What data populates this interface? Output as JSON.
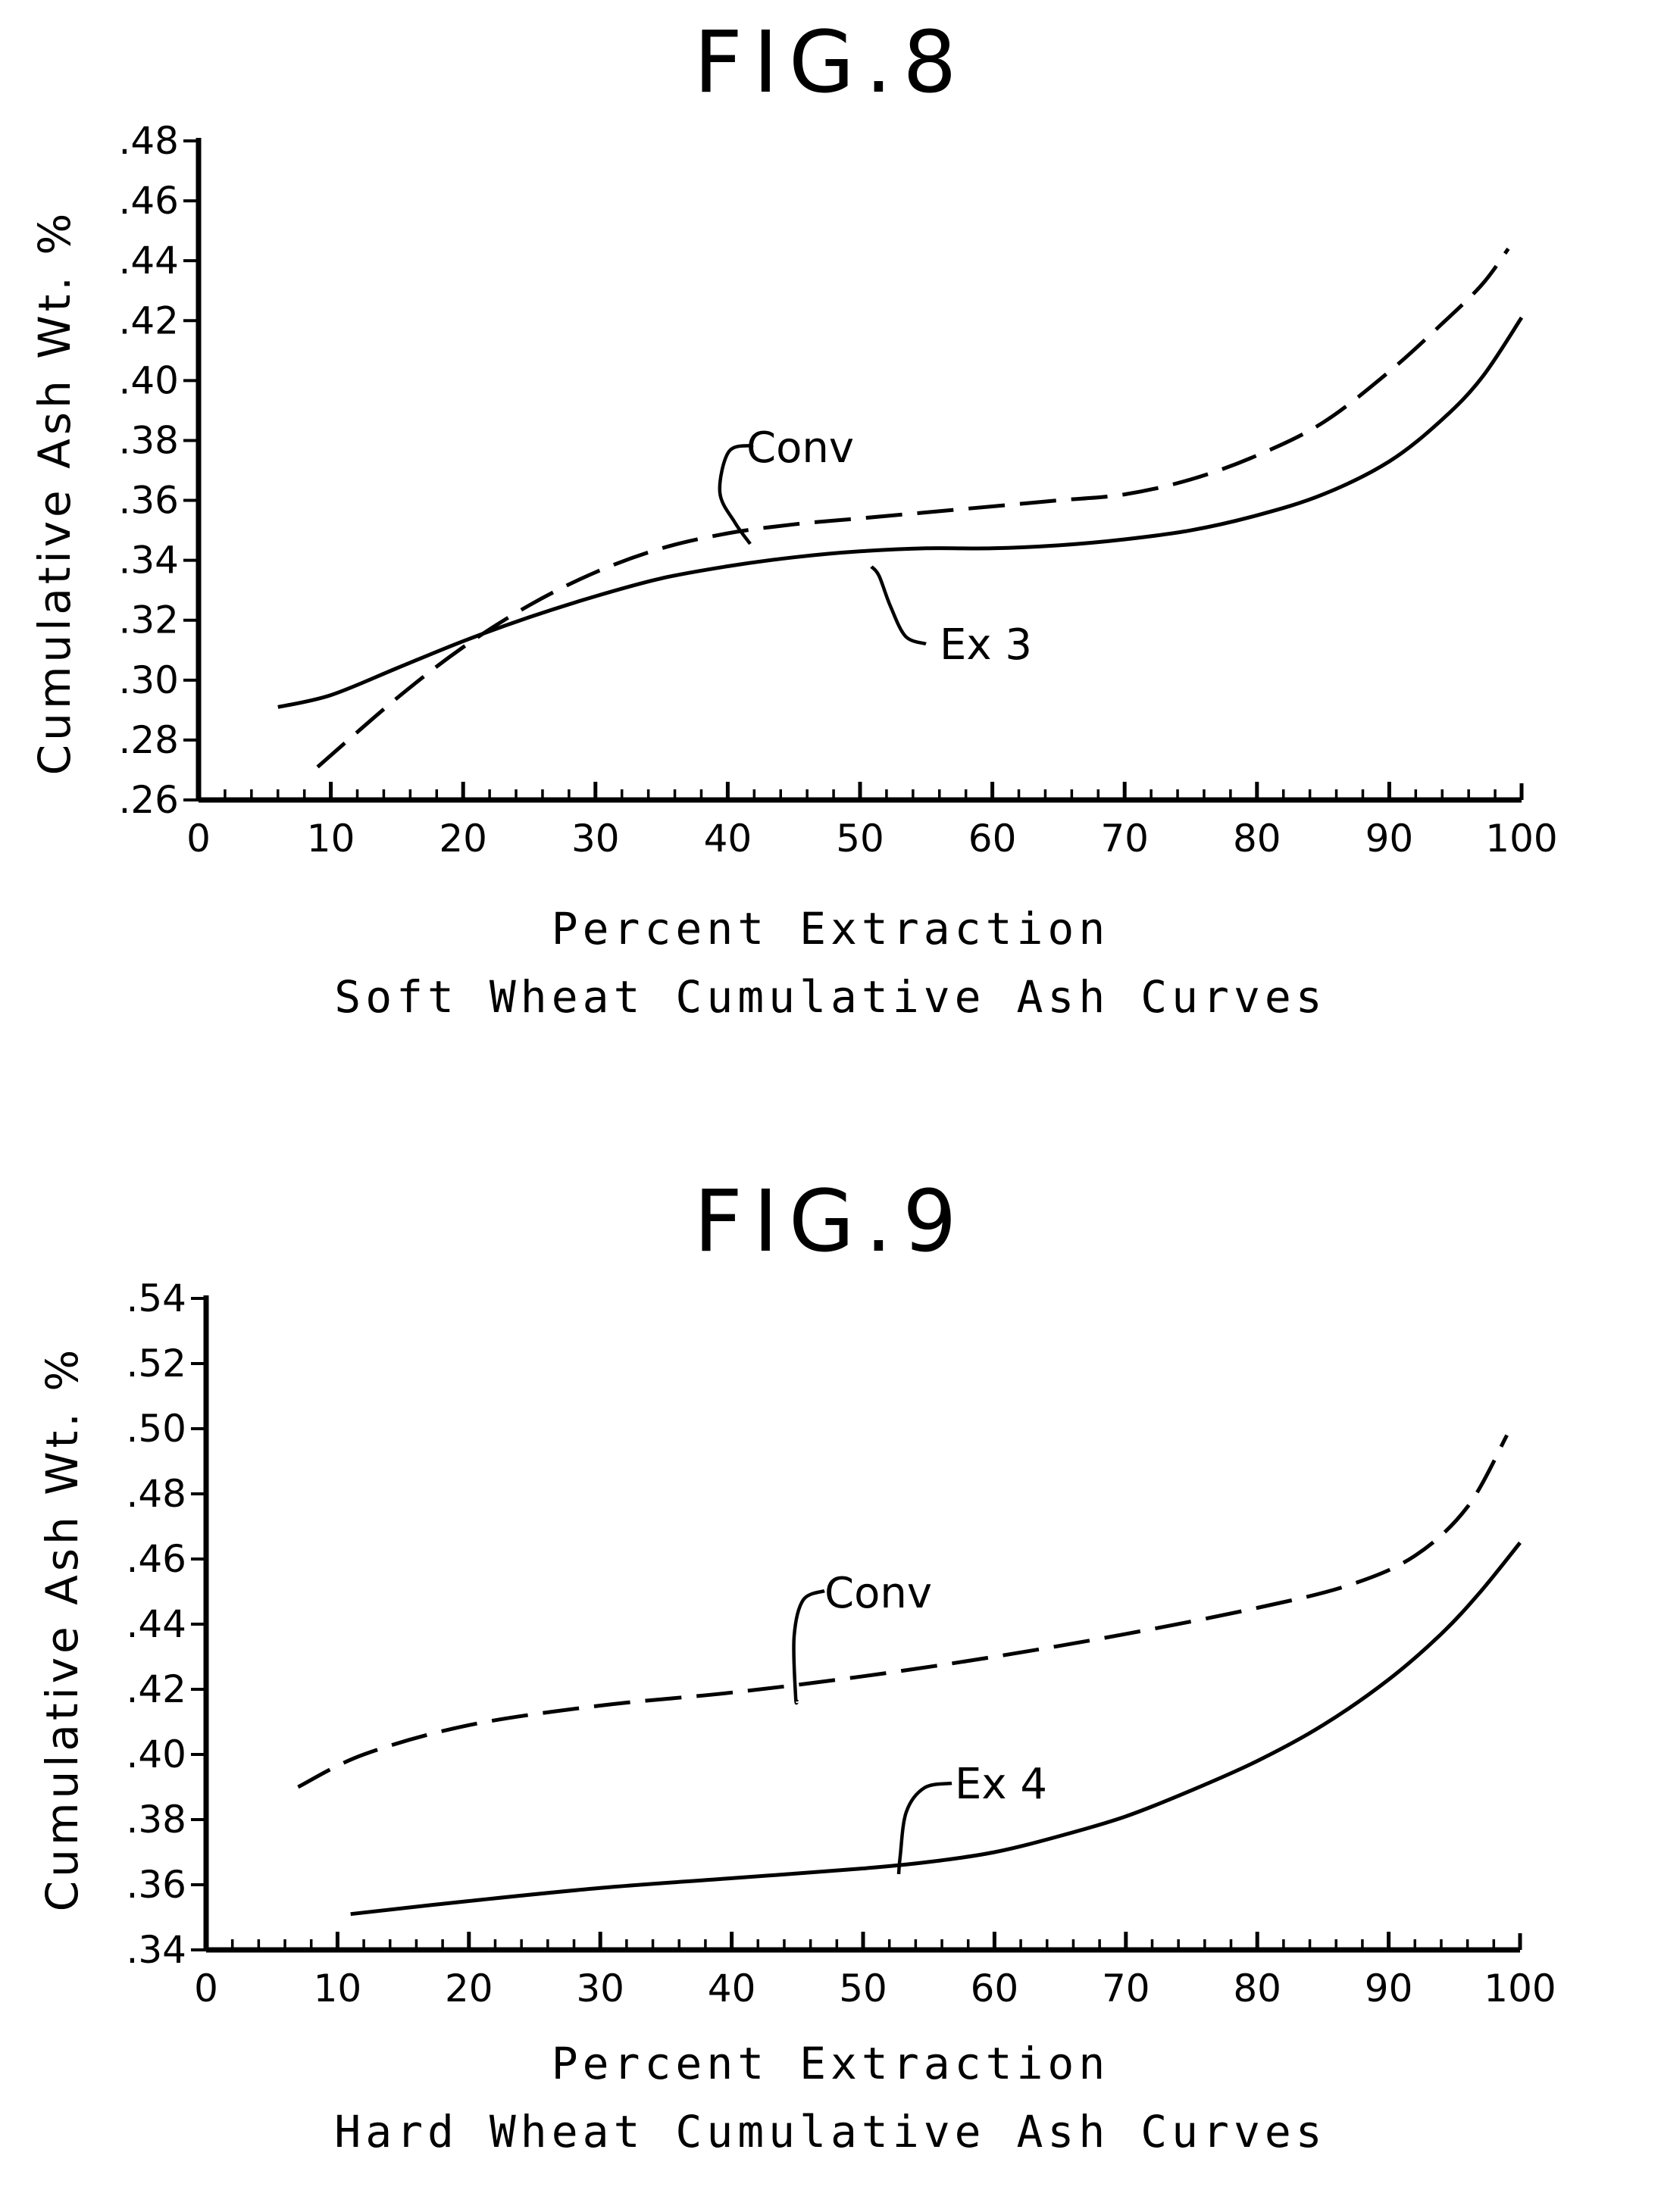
{
  "chart_data": [
    {
      "type": "line",
      "fig_label": "FIG.8",
      "title": "Soft Wheat Cumulative Ash Curves",
      "xlabel": "Percent Extraction",
      "ylabel": "Cumulative Ash Wt. %",
      "xlim": [
        0,
        100
      ],
      "ylim": [
        0.26,
        0.48
      ],
      "xticks": [
        0,
        10,
        20,
        30,
        40,
        50,
        60,
        70,
        80,
        90,
        100
      ],
      "xtick_labels": [
        "0",
        "10",
        "20",
        "30",
        "40",
        "50",
        "60",
        "70",
        "80",
        "90",
        "100"
      ],
      "yticks": [
        0.26,
        0.28,
        0.3,
        0.32,
        0.34,
        0.36,
        0.38,
        0.4,
        0.42,
        0.44,
        0.46,
        0.48
      ],
      "ytick_labels": [
        ".26",
        ".28",
        ".30",
        ".32",
        ".34",
        ".36",
        ".38",
        ".40",
        ".42",
        ".44",
        ".46",
        ".48"
      ],
      "grid": false,
      "series": [
        {
          "name": "Conv",
          "style": "dashed",
          "x": [
            9,
            15,
            20,
            25,
            30,
            35,
            40,
            45,
            50,
            55,
            60,
            65,
            70,
            75,
            80,
            85,
            90,
            94,
            97,
            99
          ],
          "y": [
            0.271,
            0.294,
            0.311,
            0.325,
            0.336,
            0.344,
            0.349,
            0.352,
            0.354,
            0.356,
            0.358,
            0.36,
            0.362,
            0.367,
            0.375,
            0.386,
            0.403,
            0.419,
            0.432,
            0.444
          ]
        },
        {
          "name": "Ex 3",
          "style": "solid",
          "x": [
            6,
            10,
            15,
            20,
            25,
            30,
            35,
            40,
            45,
            50,
            55,
            60,
            65,
            70,
            75,
            80,
            85,
            90,
            94,
            97,
            100
          ],
          "y": [
            0.291,
            0.295,
            0.304,
            0.313,
            0.321,
            0.328,
            0.334,
            0.338,
            0.341,
            0.343,
            0.344,
            0.344,
            0.345,
            0.347,
            0.35,
            0.355,
            0.362,
            0.373,
            0.387,
            0.401,
            0.421
          ]
        }
      ],
      "annotations": [
        "Conv",
        "Ex 3"
      ]
    },
    {
      "type": "line",
      "fig_label": "FIG.9",
      "title": "Hard Wheat Cumulative Ash Curves",
      "xlabel": "Percent Extraction",
      "ylabel": "Cumulative Ash Wt. %",
      "xlim": [
        0,
        100
      ],
      "ylim": [
        0.34,
        0.54
      ],
      "xticks": [
        0,
        10,
        20,
        30,
        40,
        50,
        60,
        70,
        80,
        90,
        100
      ],
      "xtick_labels": [
        "0",
        "10",
        "20",
        "30",
        "40",
        "50",
        "60",
        "70",
        "80",
        "90",
        "100"
      ],
      "yticks": [
        0.34,
        0.36,
        0.38,
        0.4,
        0.42,
        0.44,
        0.46,
        0.48,
        0.5,
        0.52,
        0.54
      ],
      "ytick_labels": [
        ".34",
        ".36",
        ".38",
        ".40",
        ".42",
        ".44",
        ".46",
        ".48",
        ".50",
        ".52",
        ".54"
      ],
      "grid": false,
      "series": [
        {
          "name": "Conv",
          "style": "dashed",
          "x": [
            7,
            12,
            20,
            30,
            40,
            50,
            60,
            70,
            80,
            87,
            92,
            96,
            99
          ],
          "y": [
            0.39,
            0.4,
            0.409,
            0.415,
            0.419,
            0.424,
            0.43,
            0.437,
            0.445,
            0.452,
            0.461,
            0.476,
            0.498
          ]
        },
        {
          "name": "Ex 4",
          "style": "solid",
          "x": [
            11,
            20,
            30,
            40,
            50,
            55,
            60,
            65,
            70,
            75,
            80,
            85,
            90,
            94,
            97,
            100
          ],
          "y": [
            0.351,
            0.355,
            0.359,
            0.362,
            0.365,
            0.367,
            0.37,
            0.375,
            0.381,
            0.389,
            0.398,
            0.409,
            0.423,
            0.437,
            0.45,
            0.465
          ]
        }
      ],
      "annotations": [
        "Conv",
        "Ex 4"
      ]
    }
  ]
}
